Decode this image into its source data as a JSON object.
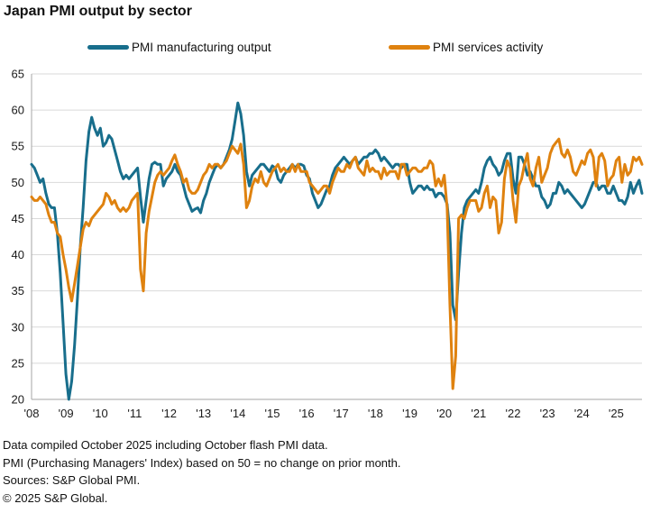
{
  "title": "Japan PMI output by sector",
  "legend": [
    {
      "label": "PMI manufacturing output",
      "color": "#186e8c"
    },
    {
      "label": "PMI services activity",
      "color": "#df820f"
    }
  ],
  "footer": {
    "lines": [
      "Data compiled October 2025 including October flash PMI data.",
      "PMI (Purchasing Managers' Index) based on 50 = no change on prior month.",
      "Sources: S&P Global PMI.",
      "© 2025 S&P Global."
    ]
  },
  "colors": {
    "manufacturing": "#186e8c",
    "services": "#df820f",
    "gridline": "#d9d9d9",
    "axis": "#a6a6a6",
    "tick_text": "#1a1a1a"
  },
  "chart_data": {
    "type": "line",
    "title": "Japan PMI output by sector",
    "x_unit": "month",
    "x_start": "2008-01",
    "x_end": "2025-10",
    "x_tick_labels": [
      "'08",
      "'09",
      "'10",
      "'11",
      "'12",
      "'13",
      "'14",
      "'15",
      "'16",
      "'17",
      "'18",
      "'19",
      "'20",
      "'21",
      "'22",
      "'23",
      "'24",
      "'25"
    ],
    "ylim": [
      20,
      65
    ],
    "yticks": [
      20,
      25,
      30,
      35,
      40,
      45,
      50,
      55,
      60,
      65
    ],
    "grid": "horizontal",
    "legend_position": "top",
    "baseline_note": "50 = no change on prior month",
    "series": [
      {
        "name": "PMI manufacturing output",
        "color": "#186e8c",
        "values": [
          52.5,
          52,
          51,
          50,
          50.5,
          48.5,
          47,
          46.5,
          46.5,
          43,
          37.5,
          30.5,
          23.5,
          20,
          22.5,
          27.5,
          34,
          41,
          46.5,
          53,
          57,
          59,
          57.5,
          56.5,
          57.5,
          55,
          55.5,
          56.5,
          56,
          54.5,
          53,
          51.5,
          50.5,
          51,
          50.5,
          51,
          51.5,
          52,
          48,
          44.5,
          47.5,
          50.5,
          52.5,
          52.8,
          52.5,
          52.5,
          49.5,
          50.5,
          51,
          51.5,
          52.5,
          51.5,
          51,
          49.5,
          48,
          47,
          46,
          46.3,
          46.5,
          45.8,
          47.5,
          48.5,
          50,
          51,
          52,
          52.5,
          52,
          52.5,
          53.5,
          54.5,
          56,
          58.5,
          61,
          59.5,
          56.5,
          51.5,
          49.5,
          51,
          51.5,
          52,
          52.5,
          52.5,
          52,
          51.5,
          52.3,
          52,
          50.5,
          50,
          51,
          51.5,
          52,
          52.5,
          52,
          52.5,
          52.5,
          52.3,
          51,
          50.5,
          48.5,
          47.5,
          46.5,
          47,
          48,
          49,
          49.5,
          51,
          52,
          52.5,
          53,
          53.5,
          53,
          52.5,
          53,
          53.5,
          52.5,
          53,
          53.5,
          53.5,
          54,
          54,
          54.5,
          54,
          53,
          53.5,
          53,
          52.5,
          52,
          52.5,
          52.5,
          52,
          52.5,
          52.5,
          50,
          48.5,
          49,
          49.5,
          49.5,
          49,
          49.5,
          49,
          49,
          48,
          48.5,
          48.5,
          48,
          47,
          43,
          33,
          31,
          37.5,
          43,
          46.5,
          47.5,
          48,
          48.5,
          49,
          48.5,
          50,
          52,
          53,
          53.5,
          52.5,
          52,
          51,
          51.5,
          53,
          54,
          54,
          50.5,
          48.5,
          53.5,
          53.5,
          52.5,
          51,
          51.5,
          50.5,
          49.5,
          49.5,
          48,
          47.5,
          46.5,
          47,
          48.5,
          48.5,
          50,
          49.5,
          48.5,
          49,
          48.5,
          48,
          47.5,
          47,
          46.5,
          47,
          48,
          49,
          50,
          50,
          49,
          49.5,
          49.5,
          48.5,
          48.5,
          49.5,
          48.5,
          47.5,
          47.5,
          47,
          48,
          50,
          48.5,
          49.5,
          50.3,
          48.5
        ]
      },
      {
        "name": "PMI services activity",
        "color": "#df820f",
        "values": [
          48,
          47.5,
          47.5,
          48,
          47.5,
          47,
          45.5,
          44.5,
          44.5,
          43,
          42.5,
          40,
          38,
          35.5,
          33.6,
          36,
          38.5,
          41,
          43.5,
          44.5,
          44,
          45,
          45.5,
          46,
          46.5,
          47,
          48.5,
          48,
          47,
          47.5,
          46.5,
          46,
          46.5,
          46,
          46.5,
          47.5,
          48,
          48.5,
          38,
          35,
          43,
          46,
          48,
          50,
          51,
          51.5,
          51,
          51.5,
          52,
          53,
          53.8,
          52.5,
          51.5,
          50,
          50.5,
          49,
          48.5,
          48.5,
          49,
          50,
          51,
          51.5,
          52.5,
          52,
          52.5,
          52.5,
          52,
          52.5,
          53,
          54,
          55,
          54.5,
          54,
          55.3,
          52.5,
          46.5,
          47.5,
          49.5,
          50.5,
          50,
          51.5,
          50,
          49.5,
          50.5,
          51.5,
          52,
          52.5,
          51.5,
          52,
          51.5,
          51.5,
          52.5,
          51.5,
          52.5,
          51.5,
          51.5,
          51.5,
          50,
          49.5,
          49,
          48.5,
          49,
          49.5,
          49.5,
          48.5,
          50,
          51,
          52,
          51.5,
          51.5,
          52.5,
          52,
          53,
          53.5,
          52,
          51.5,
          51,
          53,
          51.5,
          52,
          51.5,
          51.5,
          50.5,
          52,
          51,
          51.5,
          51.5,
          51.5,
          50.5,
          52.5,
          52.5,
          51,
          51.5,
          52,
          52,
          51.5,
          51.5,
          52,
          52,
          53,
          52.5,
          49.5,
          50.5,
          49.5,
          51,
          46.5,
          33,
          21.5,
          26,
          45,
          45.5,
          45,
          46.5,
          47.5,
          47.5,
          47.5,
          46,
          46.5,
          48.5,
          49.5,
          46.5,
          48,
          47.5,
          43,
          44.5,
          50.5,
          53,
          52,
          47.5,
          44.5,
          49.5,
          50.5,
          52.5,
          54,
          50.5,
          49.5,
          52,
          53.5,
          50,
          51,
          52,
          54,
          55,
          55.5,
          56,
          54,
          53.5,
          54.5,
          53.5,
          51.5,
          51,
          52,
          53,
          52.5,
          54,
          54.5,
          53.5,
          49.5,
          53.5,
          54,
          53,
          49.5,
          50.5,
          51,
          53,
          53.5,
          50,
          52.5,
          51,
          51.5,
          53.5,
          53,
          53.5,
          52.5
        ]
      }
    ]
  }
}
